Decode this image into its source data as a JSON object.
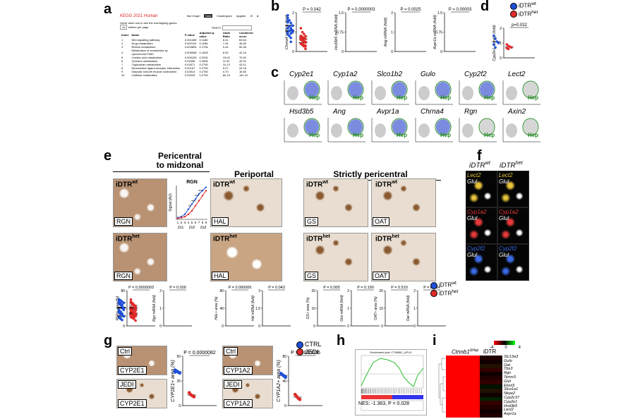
{
  "panel_labels": {
    "a": "a",
    "b": "b",
    "c": "c",
    "d": "d",
    "e": "e",
    "f": "f",
    "g": "g",
    "h": "h",
    "i": "i"
  },
  "panel_a": {
    "title": "KEGG 2021 Human",
    "tabs": [
      "Bar Graph",
      "Table",
      "Clustergram",
      "Appyter"
    ],
    "active_tab": "Table",
    "hover_hint": "Hover each row to see the overlapping genes",
    "entries_select": "10",
    "entries_suffix": "entries per page",
    "search_label": "Search:",
    "columns": [
      "Index",
      "Name",
      "P-value",
      "Adjusted p-value",
      "Odds Ratio",
      "Combined score"
    ],
    "rows": [
      [
        "1",
        "Wnt signaling pathway",
        "0.001465",
        "0.1186",
        "6.41",
        "63.64"
      ],
      [
        "2",
        "Drug metabolism",
        "0.002119",
        "0.1186",
        "7.44",
        "46.83"
      ],
      [
        "3",
        "Retinol metabolism",
        "0.004804",
        "0.1794",
        "9.44",
        "50.36"
      ],
      [
        "4",
        "Metabolism of xenobiotics by cytochrome P450",
        "0.006548",
        "0.1833",
        "8.40",
        "42.24"
      ],
      [
        "5",
        "Linoleic acid metabolism",
        "0.009103",
        "0.2031",
        "15.02",
        "70.62"
      ],
      [
        "6",
        "Tyrosine metabolism",
        "0.01596",
        "0.2606",
        "11.92",
        "49.31"
      ],
      [
        "7",
        "Tryptophan metabolism",
        "0.01871",
        "0.2750",
        "10.13",
        "43.11"
      ],
      [
        "8",
        "Neuroactive ligand-receptor interaction",
        "0.02167",
        "0.2750",
        "5.27",
        "20.16"
      ],
      [
        "9",
        "Vascular smooth muscle contraction",
        "0.02814",
        "0.2750",
        "4.70",
        "16.83"
      ],
      [
        "10",
        "Caffeine metabolism",
        "0.02943",
        "0.2750",
        "60.19",
        "141.41"
      ]
    ]
  },
  "legend": {
    "wt_base": "iDTR",
    "wt_sup": "wt",
    "het_base": "iDTR",
    "het_sup": "het",
    "wt_color": "#1f4fd8",
    "het_color": "#e02a2a"
  },
  "panel_b": {
    "plots": [
      {
        "ylabel": "Chrna4 mRNA (fold)",
        "p": "P = 0.042",
        "wt": [
          1.6,
          1.3,
          1.2,
          1.1,
          1.0,
          0.8,
          0.5
        ],
        "het": [
          1.2,
          1.0,
          0.9,
          0.8,
          0.7,
          0.6,
          0.5,
          0.3
        ],
        "ymax": 2
      },
      {
        "ylabel": "Hsd3b5 mRNA (fold)",
        "p": "P = 0.0000003",
        "wt": [
          1.3,
          1.2,
          1.1,
          1.0,
          0.9,
          0.8,
          0.7
        ],
        "het": [
          0.6,
          0.5,
          0.4,
          0.35,
          0.3,
          0.25,
          0.2,
          0.1
        ],
        "ymax": 1.5
      },
      {
        "ylabel": "Ang mRNA (fold)",
        "p": "P = 0.0025",
        "wt": [
          1.5,
          1.3,
          1.1,
          1.0,
          0.9,
          0.8,
          0.7
        ],
        "het": [
          0.8,
          0.75,
          0.7,
          0.65,
          0.6,
          0.55,
          0.5,
          0.5
        ],
        "ymax": 2
      },
      {
        "ylabel": "Avpr1a mRNA (fold)",
        "p": "P = 0.00003",
        "wt": [
          1.4,
          1.2,
          1.1,
          1.0,
          0.9,
          0.8,
          0.7
        ],
        "het": [
          0.5,
          0.45,
          0.4,
          0.35,
          0.3,
          0.3,
          0.25,
          0.2
        ],
        "ymax": 1.5
      }
    ]
  },
  "panel_d": {
    "ylabel": "Cyp2e1 activity (fold)",
    "p": "p=0.032",
    "wt": [
      1.5,
      1.3,
      1.1,
      1.0,
      0.9,
      0.7
    ],
    "het": [
      0.9,
      0.8,
      0.75,
      0.7,
      0.65,
      0.6
    ],
    "ymax": 2
  },
  "panel_c": {
    "genes": [
      "Cyp2e1",
      "Cyp1a2",
      "Slco1b2",
      "Gulo",
      "Cyp2f2",
      "Lect2",
      "Hsd3b5",
      "Ang",
      "Avpr1a",
      "Chrna4",
      "Rgn",
      "Axin2"
    ],
    "hep_label": "Hep"
  },
  "panel_e": {
    "group1_title": "Pericentral\nto midzonal",
    "group1_l1": "Pericentral",
    "group1_l2": "to midzonal",
    "group2_title": "Periportal",
    "group3_title": "Strictly pericentral",
    "markers": [
      "RGN",
      "HAL",
      "GS",
      "OAT"
    ],
    "rgn_chart": {
      "title": "RGN",
      "ylabel": "Signal (AU)",
      "x_ticks": [
        "1",
        "2",
        "3",
        "4",
        "5",
        "6",
        "7",
        "8",
        "9"
      ],
      "zones": [
        "Zo1",
        "Zo2",
        "Zo3"
      ],
      "wt": [
        0.05,
        0.08,
        0.15,
        0.3,
        0.45,
        0.6,
        0.75,
        0.85,
        0.95
      ],
      "het": [
        0.03,
        0.05,
        0.08,
        0.15,
        0.25,
        0.4,
        0.55,
        0.7,
        0.85
      ],
      "stars": [
        "**",
        "***",
        "***",
        "***"
      ]
    },
    "quant": [
      {
        "ylabel": "RGN+ area (%)",
        "p": "P = 0.0000003",
        "wt": [
          60,
          58,
          55,
          52,
          50,
          48
        ],
        "het": [
          30,
          28,
          25,
          22,
          20,
          18
        ],
        "ymax": 80
      },
      {
        "ylabel": "Rgn mRNA (fold)",
        "p": "P = 0.026",
        "wt": [
          1.5,
          1.3,
          1.2,
          1.0,
          0.9,
          0.8,
          0.6
        ],
        "het": [
          1.0,
          0.9,
          0.8,
          0.7,
          0.6,
          0.5,
          0.4,
          0.3
        ],
        "ymax": 2
      },
      {
        "ylabel": "HAL+ area (%)",
        "p": "P = 0.000006",
        "wt": [
          30,
          28,
          25,
          22,
          20,
          18
        ],
        "het": [
          55,
          50,
          48,
          45,
          42,
          40
        ],
        "ymax": 80
      },
      {
        "ylabel": "Hal mRNA (fold)",
        "p": "P = 0.043",
        "wt": [
          1.2,
          1.0,
          0.9,
          0.8,
          0.7,
          0.6,
          0.5
        ],
        "het": [
          2.0,
          1.8,
          1.5,
          1.3,
          1.2,
          1.0,
          0.9
        ],
        "ymax": 3
      },
      {
        "ylabel": "GS+ area (%)",
        "p": "P = 0.005",
        "wt": [
          14,
          12,
          11,
          10,
          9,
          8
        ],
        "het": [
          9,
          8,
          7.5,
          7,
          6.5,
          6
        ],
        "ymax": 20
      },
      {
        "ylabel": "Glul mRNA (fold)",
        "p": "P = 0.190",
        "wt": [
          1.4,
          1.2,
          1.0,
          0.9,
          0.8,
          0.7
        ],
        "het": [
          1.0,
          0.9,
          0.8,
          0.7,
          0.6,
          0.5,
          0.5
        ],
        "ymax": 2
      },
      {
        "ylabel": "OAT+ area (%)",
        "p": "P = 0.510",
        "wt": [
          14,
          12,
          11,
          10,
          9,
          8
        ],
        "het": [
          13,
          12,
          11,
          10,
          9,
          8
        ],
        "ymax": 20
      },
      {
        "ylabel": "Oat mRNA (fold)",
        "p": "P = 0.634",
        "wt": [
          1.4,
          1.2,
          1.1,
          1.0,
          0.9,
          0.8,
          0.7
        ],
        "het": [
          1.5,
          1.3,
          1.2,
          1.0,
          0.9,
          0.8,
          0.7,
          0.6
        ],
        "ymax": 2
      }
    ]
  },
  "panel_f": {
    "col_wt_base": "iDTR",
    "col_wt_sup": "wt",
    "col_het_base": "iDTR",
    "col_het_sup": "het",
    "rows": [
      {
        "gene": "Lect2",
        "glul": "Glul",
        "color": "#e6c23a"
      },
      {
        "gene": "Cyp1a2",
        "glul": "Glul",
        "color": "#e63a3a"
      },
      {
        "gene": "Cyp2f2",
        "glul": "Glul",
        "color": "#3a6ae6"
      }
    ]
  },
  "panel_g": {
    "labels": {
      "ctrl": "Ctrl",
      "jedi": "JEDI",
      "cyp2e1": "CYP2E1",
      "cyp1a2": "CYP1A2"
    },
    "legend": {
      "ctrl": "CTRL",
      "jedi": "JEDI",
      "ctrl_color": "#1f4fd8",
      "jedi_color": "#e02a2a"
    },
    "plots": [
      {
        "ylabel": "CYP2E1+ area (%)",
        "p": "P = 0.0000082",
        "ctrl": [
          36,
          35,
          34,
          33,
          34
        ],
        "jedi": [
          13,
          11,
          10,
          9
        ],
        "ymax": 50
      },
      {
        "ylabel": "CYP1A2+ area (%)",
        "p": "P = 0.000036",
        "ctrl": [
          52,
          50,
          48,
          46
        ],
        "jedi": [
          18,
          15,
          12,
          10
        ],
        "ymax": 80
      }
    ]
  },
  "panel_h": {
    "title": "Enrichment plot: CTNNB1_UP.V1",
    "stats": "NES: -1.363, P = 0.028"
  },
  "panel_i": {
    "col1_base": "Ctnnb1",
    "col1_sup": "ΔHep",
    "col2": "iDTR",
    "scale_ticks": [
      "-4",
      "0",
      "4"
    ],
    "genes": [
      "Slc13a3",
      "Gulo",
      "Oat",
      "Tbx3",
      "Rgn",
      "Tenm3",
      "Glul",
      "Elovl3",
      "Slco1a1",
      "Nkpe2",
      "Cyp2c37",
      "Cyp2e1",
      "Hsd3b5",
      "Lect2",
      "Avpr1a"
    ]
  }
}
